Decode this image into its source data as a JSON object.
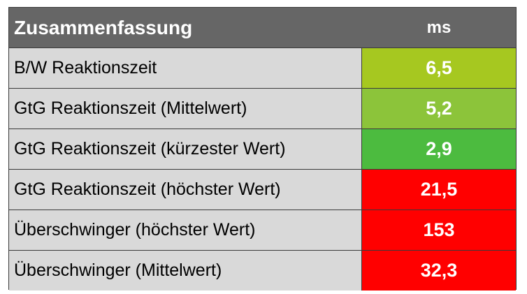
{
  "header": {
    "title": "Zusammenfassung",
    "unit": "ms"
  },
  "rows": [
    {
      "label": "B/W Reaktionszeit",
      "value": "6,5",
      "color": "#a6c820"
    },
    {
      "label": "GtG Reaktionszeit (Mittelwert)",
      "value": "5,2",
      "color": "#8cc43a"
    },
    {
      "label": "GtG Reaktionszeit (kürzester Wert)",
      "value": "2,9",
      "color": "#4cbb3f"
    },
    {
      "label": "GtG Reaktionszeit (höchster Wert)",
      "value": "21,5",
      "color": "#ff0000"
    },
    {
      "label": "Überschwinger (höchster Wert)",
      "value": "153",
      "color": "#ff0000"
    },
    {
      "label": "Überschwinger (Mittelwert)",
      "value": "32,3",
      "color": "#ff0000"
    }
  ]
}
